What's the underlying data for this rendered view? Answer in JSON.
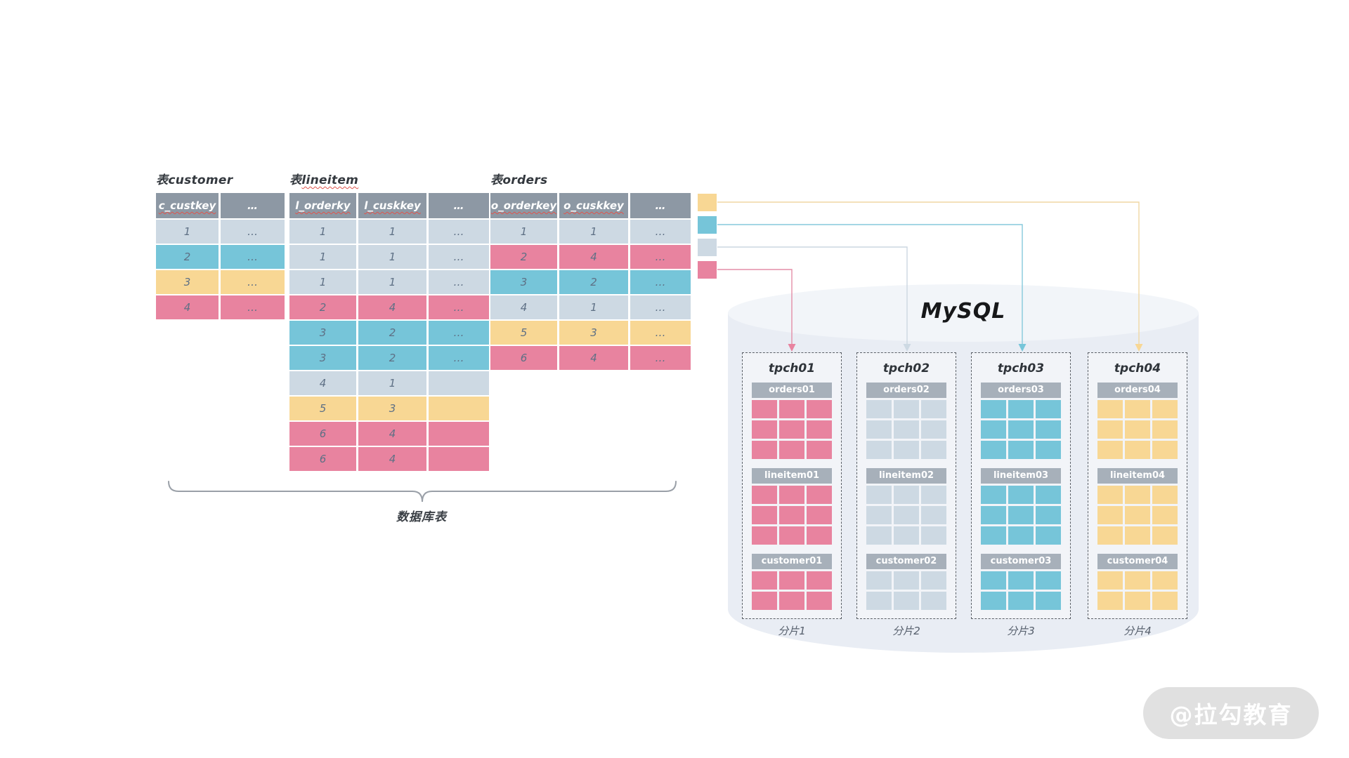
{
  "palette": {
    "yellow": "#f8d794",
    "blue": "#76c5d9",
    "light": "#cdd9e3",
    "pink": "#e8839f",
    "table_header_bg": "#8d98a4",
    "shard_header_bg": "#a7b0ba",
    "cell_text": "#5e7085",
    "header_text": "#ffffff",
    "squiggle": "#e0544c",
    "cylinder_body": "#e9edf4",
    "cylinder_top": "#f2f5f9",
    "line_yellow": "#f0d7a4",
    "line_blue": "#85c9db",
    "line_light": "#ccd7e1",
    "line_pink": "#e38ea7"
  },
  "tables": [
    {
      "title_prefix": "表",
      "title_name": "customer",
      "title_misspelled": false,
      "headers": [
        "c_custkey",
        "…"
      ],
      "rows": [
        {
          "color": "light",
          "cells": [
            "1",
            "…"
          ]
        },
        {
          "color": "blue",
          "cells": [
            "2",
            "…"
          ]
        },
        {
          "color": "yellow",
          "cells": [
            "3",
            "…"
          ]
        },
        {
          "color": "pink",
          "cells": [
            "4",
            "…"
          ]
        }
      ]
    },
    {
      "title_prefix": "表",
      "title_name": "lineitem",
      "title_misspelled": true,
      "headers": [
        "l_orderky",
        "l_cuskkey",
        "…"
      ],
      "rows": [
        {
          "color": "light",
          "cells": [
            "1",
            "1",
            "…"
          ]
        },
        {
          "color": "light",
          "cells": [
            "1",
            "1",
            "…"
          ]
        },
        {
          "color": "light",
          "cells": [
            "1",
            "1",
            "…"
          ]
        },
        {
          "color": "pink",
          "cells": [
            "2",
            "4",
            "…"
          ]
        },
        {
          "color": "blue",
          "cells": [
            "3",
            "2",
            "…"
          ]
        },
        {
          "color": "blue",
          "cells": [
            "3",
            "2",
            "…"
          ]
        },
        {
          "color": "light",
          "cells": [
            "4",
            "1",
            ""
          ]
        },
        {
          "color": "yellow",
          "cells": [
            "5",
            "3",
            ""
          ]
        },
        {
          "color": "pink",
          "cells": [
            "6",
            "4",
            ""
          ]
        },
        {
          "color": "pink",
          "cells": [
            "6",
            "4",
            ""
          ]
        }
      ]
    },
    {
      "title_prefix": "表",
      "title_name": "orders",
      "title_misspelled": false,
      "headers": [
        "o_orderkey",
        "o_cuskkey",
        "…"
      ],
      "rows": [
        {
          "color": "light",
          "cells": [
            "1",
            "1",
            "…"
          ]
        },
        {
          "color": "pink",
          "cells": [
            "2",
            "4",
            "…"
          ]
        },
        {
          "color": "blue",
          "cells": [
            "3",
            "2",
            "…"
          ]
        },
        {
          "color": "light",
          "cells": [
            "4",
            "1",
            "…"
          ]
        },
        {
          "color": "yellow",
          "cells": [
            "5",
            "3",
            "…"
          ]
        },
        {
          "color": "pink",
          "cells": [
            "6",
            "4",
            "…"
          ]
        }
      ]
    }
  ],
  "legend": {
    "items": [
      {
        "color": "yellow"
      },
      {
        "color": "blue"
      },
      {
        "color": "light"
      },
      {
        "color": "pink"
      }
    ]
  },
  "brace": {
    "label": "数据库表"
  },
  "mysql": {
    "label": "MySQL",
    "shards": [
      {
        "name": "tpch01",
        "color": "pink",
        "caption": "分片1",
        "tables": [
          {
            "label": "orders01",
            "rows": 3,
            "cols": 3
          },
          {
            "label": "lineitem01",
            "rows": 3,
            "cols": 3
          },
          {
            "label": "customer01",
            "rows": 2,
            "cols": 3
          }
        ]
      },
      {
        "name": "tpch02",
        "color": "light",
        "caption": "分片2",
        "tables": [
          {
            "label": "orders02",
            "rows": 3,
            "cols": 3
          },
          {
            "label": "lineitem02",
            "rows": 3,
            "cols": 3
          },
          {
            "label": "customer02",
            "rows": 2,
            "cols": 3
          }
        ]
      },
      {
        "name": "tpch03",
        "color": "blue",
        "caption": "分片3",
        "tables": [
          {
            "label": "orders03",
            "rows": 3,
            "cols": 3
          },
          {
            "label": "lineitem03",
            "rows": 3,
            "cols": 3
          },
          {
            "label": "customer03",
            "rows": 2,
            "cols": 3
          }
        ]
      },
      {
        "name": "tpch04",
        "color": "yellow",
        "caption": "分片4",
        "tables": [
          {
            "label": "orders04",
            "rows": 3,
            "cols": 3
          },
          {
            "label": "lineitem04",
            "rows": 3,
            "cols": 3
          },
          {
            "label": "customer04",
            "rows": 2,
            "cols": 3
          }
        ]
      }
    ]
  },
  "watermark": {
    "text": "@拉勾教育"
  }
}
